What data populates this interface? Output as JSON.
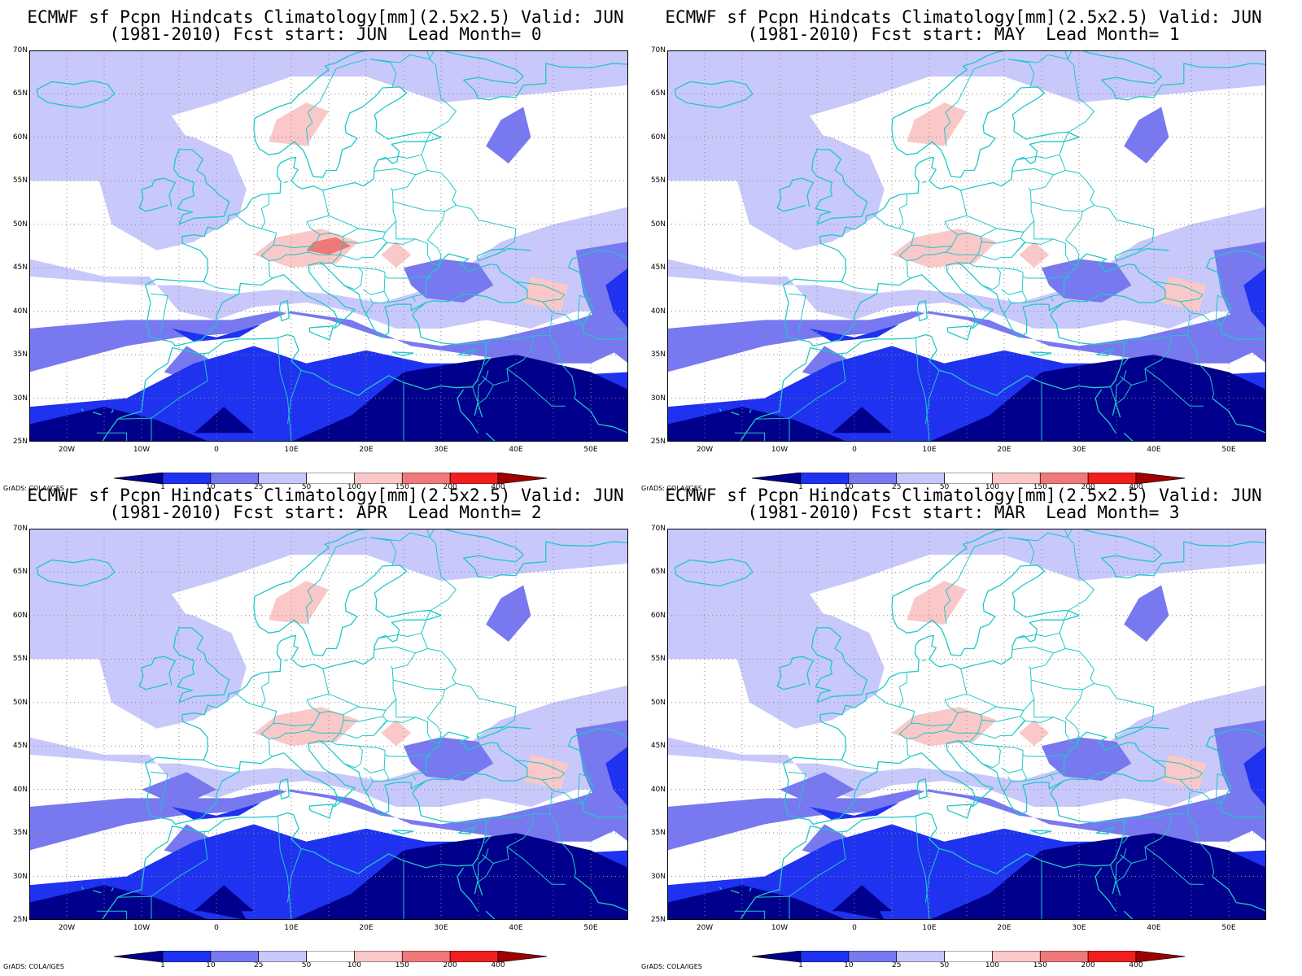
{
  "panels": [
    {
      "title_line1": "ECMWF sf Pcpn Hindcats Climatology[mm](2.5x2.5) Valid: JUN",
      "title_line2": "(1981-2010) Fcst start: JUN  Lead Month= 0"
    },
    {
      "title_line1": "ECMWF sf Pcpn Hindcats Climatology[mm](2.5x2.5) Valid: JUN",
      "title_line2": "(1981-2010) Fcst start: MAY  Lead Month= 1"
    },
    {
      "title_line1": "ECMWF sf Pcpn Hindcats Climatology[mm](2.5x2.5) Valid: JUN",
      "title_line2": "(1981-2010) Fcst start: APR  Lead Month= 2"
    },
    {
      "title_line1": "ECMWF sf Pcpn Hindcats Climatology[mm](2.5x2.5) Valid: JUN",
      "title_line2": "(1981-2010) Fcst start: MAR  Lead Month= 3"
    }
  ],
  "axes": {
    "lat_labels": [
      "70N",
      "65N",
      "60N",
      "55N",
      "50N",
      "45N",
      "40N",
      "35N",
      "30N",
      "25N"
    ],
    "lon_labels": [
      "20W",
      "10W",
      "0",
      "10E",
      "20E",
      "30E",
      "40E",
      "50E"
    ],
    "lat_range": [
      25,
      70
    ],
    "lon_range": [
      -25,
      55
    ]
  },
  "legend": {
    "labels": [
      "1",
      "10",
      "25",
      "50",
      "100",
      "150",
      "200",
      "400"
    ],
    "colors": [
      "#00008c",
      "#1e32f0",
      "#7878f0",
      "#c8c8fa",
      "#ffffff",
      "#fac8c8",
      "#f07878",
      "#f01e1e",
      "#a00000"
    ]
  },
  "credit": "GrADS: COLA/IGES",
  "colors": {
    "coastline": "#1ec8c8",
    "grid": "#888888"
  }
}
